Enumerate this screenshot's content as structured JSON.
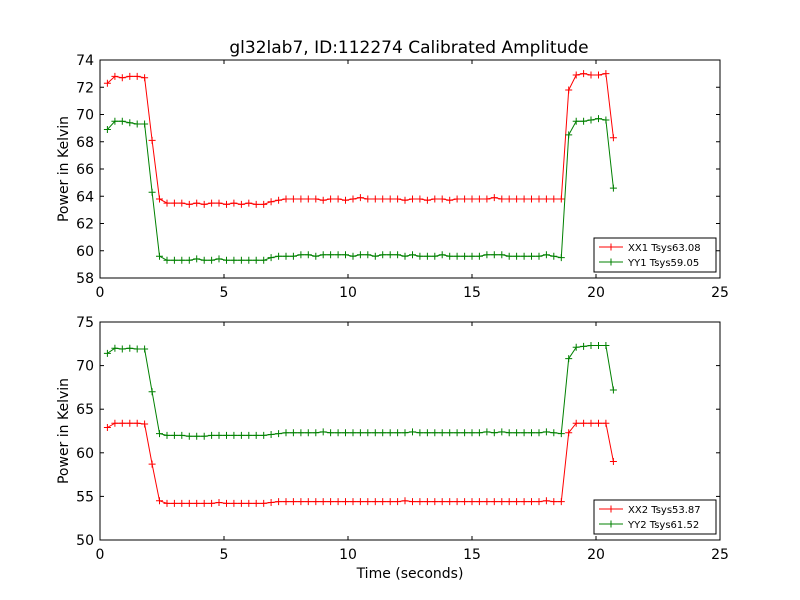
{
  "colors": {
    "red": "#ff0000",
    "green": "#008000",
    "axis": "#000000",
    "background": "#ffffff"
  },
  "chart_data": [
    {
      "type": "line",
      "title": "gl32lab7, ID:112274 Calibrated Amplitude",
      "xlabel": "",
      "ylabel": "Power in Kelvin",
      "xlim": [
        0,
        25
      ],
      "ylim": [
        58,
        74
      ],
      "xticks": [
        0,
        5,
        10,
        15,
        20,
        25
      ],
      "yticks": [
        58,
        60,
        62,
        64,
        66,
        68,
        70,
        72,
        74
      ],
      "grid": false,
      "legend_position": "lower-right",
      "marker": "plus",
      "series": [
        {
          "name": "XX1 Tsys63.08",
          "color": "#ff0000",
          "x": [
            0.3,
            0.6,
            0.9,
            1.2,
            1.5,
            1.8,
            2.1,
            2.4,
            2.7,
            3.0,
            3.3,
            3.6,
            3.9,
            4.2,
            4.5,
            4.8,
            5.1,
            5.4,
            5.7,
            6.0,
            6.3,
            6.6,
            6.9,
            7.2,
            7.5,
            7.8,
            8.1,
            8.4,
            8.7,
            9.0,
            9.3,
            9.6,
            9.9,
            10.2,
            10.5,
            10.8,
            11.1,
            11.4,
            11.7,
            12.0,
            12.3,
            12.6,
            12.9,
            13.2,
            13.5,
            13.8,
            14.1,
            14.4,
            14.7,
            15.0,
            15.3,
            15.6,
            15.9,
            16.2,
            16.5,
            16.8,
            17.1,
            17.4,
            17.7,
            18.0,
            18.3,
            18.6,
            18.9,
            19.2,
            19.5,
            19.8,
            20.1,
            20.4,
            20.7
          ],
          "y": [
            72.3,
            72.8,
            72.7,
            72.8,
            72.8,
            72.7,
            68.1,
            63.8,
            63.5,
            63.5,
            63.5,
            63.4,
            63.5,
            63.4,
            63.5,
            63.5,
            63.4,
            63.5,
            63.4,
            63.5,
            63.4,
            63.4,
            63.6,
            63.7,
            63.8,
            63.8,
            63.8,
            63.8,
            63.8,
            63.7,
            63.8,
            63.8,
            63.7,
            63.8,
            63.9,
            63.8,
            63.8,
            63.8,
            63.8,
            63.8,
            63.7,
            63.8,
            63.8,
            63.7,
            63.8,
            63.8,
            63.7,
            63.8,
            63.8,
            63.8,
            63.8,
            63.8,
            63.9,
            63.8,
            63.8,
            63.8,
            63.8,
            63.8,
            63.8,
            63.8,
            63.8,
            63.8,
            71.8,
            72.9,
            73.0,
            72.9,
            72.9,
            73.0,
            68.3
          ]
        },
        {
          "name": "YY1 Tsys59.05",
          "color": "#008000",
          "x": [
            0.3,
            0.6,
            0.9,
            1.2,
            1.5,
            1.8,
            2.1,
            2.4,
            2.7,
            3.0,
            3.3,
            3.6,
            3.9,
            4.2,
            4.5,
            4.8,
            5.1,
            5.4,
            5.7,
            6.0,
            6.3,
            6.6,
            6.9,
            7.2,
            7.5,
            7.8,
            8.1,
            8.4,
            8.7,
            9.0,
            9.3,
            9.6,
            9.9,
            10.2,
            10.5,
            10.8,
            11.1,
            11.4,
            11.7,
            12.0,
            12.3,
            12.6,
            12.9,
            13.2,
            13.5,
            13.8,
            14.1,
            14.4,
            14.7,
            15.0,
            15.3,
            15.6,
            15.9,
            16.2,
            16.5,
            16.8,
            17.1,
            17.4,
            17.7,
            18.0,
            18.3,
            18.6,
            18.9,
            19.2,
            19.5,
            19.8,
            20.1,
            20.4,
            20.7
          ],
          "y": [
            68.9,
            69.5,
            69.5,
            69.4,
            69.3,
            69.3,
            64.3,
            59.6,
            59.3,
            59.3,
            59.3,
            59.3,
            59.4,
            59.3,
            59.3,
            59.4,
            59.3,
            59.3,
            59.3,
            59.3,
            59.3,
            59.3,
            59.5,
            59.6,
            59.6,
            59.6,
            59.7,
            59.7,
            59.6,
            59.7,
            59.7,
            59.7,
            59.7,
            59.6,
            59.7,
            59.7,
            59.6,
            59.7,
            59.7,
            59.7,
            59.6,
            59.7,
            59.6,
            59.6,
            59.6,
            59.7,
            59.6,
            59.6,
            59.6,
            59.6,
            59.6,
            59.7,
            59.7,
            59.7,
            59.6,
            59.6,
            59.6,
            59.6,
            59.6,
            59.7,
            59.6,
            59.5,
            68.5,
            69.5,
            69.5,
            69.6,
            69.7,
            69.6,
            64.6
          ]
        }
      ]
    },
    {
      "type": "line",
      "title": "",
      "xlabel": "Time (seconds)",
      "ylabel": "Power in Kelvin",
      "xlim": [
        0,
        25
      ],
      "ylim": [
        50,
        75
      ],
      "xticks": [
        0,
        5,
        10,
        15,
        20,
        25
      ],
      "yticks": [
        50,
        55,
        60,
        65,
        70,
        75
      ],
      "grid": false,
      "legend_position": "lower-right",
      "marker": "plus",
      "series": [
        {
          "name": "XX2 Tsys53.87",
          "color": "#ff0000",
          "x": [
            0.3,
            0.6,
            0.9,
            1.2,
            1.5,
            1.8,
            2.1,
            2.4,
            2.7,
            3.0,
            3.3,
            3.6,
            3.9,
            4.2,
            4.5,
            4.8,
            5.1,
            5.4,
            5.7,
            6.0,
            6.3,
            6.6,
            6.9,
            7.2,
            7.5,
            7.8,
            8.1,
            8.4,
            8.7,
            9.0,
            9.3,
            9.6,
            9.9,
            10.2,
            10.5,
            10.8,
            11.1,
            11.4,
            11.7,
            12.0,
            12.3,
            12.6,
            12.9,
            13.2,
            13.5,
            13.8,
            14.1,
            14.4,
            14.7,
            15.0,
            15.3,
            15.6,
            15.9,
            16.2,
            16.5,
            16.8,
            17.1,
            17.4,
            17.7,
            18.0,
            18.3,
            18.6,
            18.9,
            19.2,
            19.5,
            19.8,
            20.1,
            20.4,
            20.7
          ],
          "y": [
            62.9,
            63.4,
            63.4,
            63.4,
            63.4,
            63.3,
            58.7,
            54.5,
            54.2,
            54.2,
            54.2,
            54.2,
            54.2,
            54.2,
            54.2,
            54.3,
            54.2,
            54.2,
            54.2,
            54.2,
            54.2,
            54.2,
            54.3,
            54.4,
            54.4,
            54.4,
            54.4,
            54.4,
            54.4,
            54.4,
            54.4,
            54.4,
            54.4,
            54.4,
            54.4,
            54.4,
            54.4,
            54.4,
            54.4,
            54.4,
            54.5,
            54.4,
            54.4,
            54.4,
            54.4,
            54.4,
            54.4,
            54.4,
            54.4,
            54.4,
            54.4,
            54.4,
            54.4,
            54.4,
            54.4,
            54.4,
            54.4,
            54.4,
            54.4,
            54.5,
            54.4,
            54.4,
            62.3,
            63.4,
            63.4,
            63.4,
            63.4,
            63.4,
            59.0
          ]
        },
        {
          "name": "YY2 Tsys61.52",
          "color": "#008000",
          "x": [
            0.3,
            0.6,
            0.9,
            1.2,
            1.5,
            1.8,
            2.1,
            2.4,
            2.7,
            3.0,
            3.3,
            3.6,
            3.9,
            4.2,
            4.5,
            4.8,
            5.1,
            5.4,
            5.7,
            6.0,
            6.3,
            6.6,
            6.9,
            7.2,
            7.5,
            7.8,
            8.1,
            8.4,
            8.7,
            9.0,
            9.3,
            9.6,
            9.9,
            10.2,
            10.5,
            10.8,
            11.1,
            11.4,
            11.7,
            12.0,
            12.3,
            12.6,
            12.9,
            13.2,
            13.5,
            13.8,
            14.1,
            14.4,
            14.7,
            15.0,
            15.3,
            15.6,
            15.9,
            16.2,
            16.5,
            16.8,
            17.1,
            17.4,
            17.7,
            18.0,
            18.3,
            18.6,
            18.9,
            19.2,
            19.5,
            19.8,
            20.1,
            20.4,
            20.7
          ],
          "y": [
            71.4,
            72.0,
            71.9,
            72.0,
            71.9,
            71.9,
            67.0,
            62.2,
            62.0,
            62.0,
            62.0,
            61.9,
            61.9,
            61.9,
            62.0,
            62.0,
            62.0,
            62.0,
            62.0,
            62.0,
            62.0,
            62.0,
            62.1,
            62.2,
            62.3,
            62.3,
            62.3,
            62.3,
            62.3,
            62.4,
            62.3,
            62.3,
            62.3,
            62.3,
            62.3,
            62.3,
            62.3,
            62.3,
            62.3,
            62.3,
            62.3,
            62.4,
            62.3,
            62.3,
            62.3,
            62.3,
            62.3,
            62.3,
            62.3,
            62.3,
            62.3,
            62.4,
            62.3,
            62.4,
            62.3,
            62.3,
            62.3,
            62.3,
            62.3,
            62.4,
            62.3,
            62.2,
            70.8,
            72.1,
            72.2,
            72.3,
            72.3,
            72.3,
            67.2
          ]
        }
      ]
    }
  ]
}
